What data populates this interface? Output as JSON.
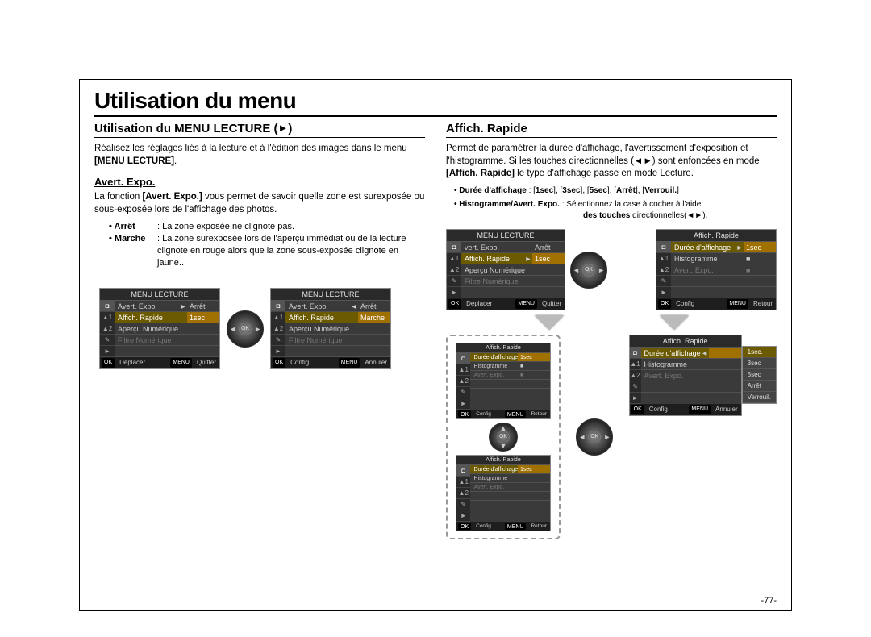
{
  "page_title": "Utilisation du menu",
  "page_number": "-77-",
  "left": {
    "heading": "Utilisation du MENU LECTURE (",
    "heading_icon": "►",
    "heading_close": ")",
    "intro_1": "Réalisez les réglages liés à la lecture et à l'édition des images dans le menu ",
    "intro_bold": "[MENU LECTURE]",
    "intro_2": ".",
    "sub_heading": "Avert. Expo.",
    "sub_intro_a": "La fonction ",
    "sub_intro_bold": "[Avert. Expo.]",
    "sub_intro_b": " vous permet de savoir quelle zone est surexposée ou sous-exposée lors de l'affichage des photos.",
    "def1_k": "• Arrêt",
    "def1_v": ": La zone exposée ne clignote pas.",
    "def2_k": "• Marche",
    "def2_v": ": La zone surexposée lors de l'aperçu immédiat ou de la lecture clignote en rouge alors que la zone sous-exposée clignote en jaune..",
    "lcd1": {
      "title": "MENU LECTURE",
      "rows": [
        {
          "label": "Avert. Expo.",
          "arrow": "►",
          "val": "Arrêt",
          "sel": false
        },
        {
          "label": "Affich. Rapide",
          "arrow": "",
          "val": "1sec",
          "sel": true
        },
        {
          "label": "Aperçu Numérique",
          "arrow": "",
          "val": "",
          "sel": false
        },
        {
          "label": "Filtre Numérique",
          "arrow": "",
          "val": "",
          "sel": false,
          "dim": true
        }
      ],
      "foot_l": "Déplacer",
      "foot_btn": "MENU",
      "foot_r": "Quitter"
    },
    "lcd2": {
      "title": "MENU LECTURE",
      "rows": [
        {
          "label": "Avert. Expo.",
          "arrow": "◄",
          "val": "Arrêt",
          "sel": false
        },
        {
          "label": "Affich. Rapide",
          "arrow": "",
          "val": "Marche",
          "sel": true
        },
        {
          "label": "Aperçu Numérique",
          "arrow": "",
          "val": "",
          "sel": false
        },
        {
          "label": "Filtre Numérique",
          "arrow": "",
          "val": "",
          "sel": false,
          "dim": true
        }
      ],
      "foot_l": "Config",
      "foot_btn": "MENU",
      "foot_r": "Annuler"
    }
  },
  "right": {
    "heading": "Afﬁch. Rapide",
    "intro": "Permet de paramétrer la durée d'affichage, l'avertissement d'exposition et l'histogramme. Si les touches directionnelles (◄►) sont enfoncées en mode ",
    "intro_bold": "[Afﬁch. Rapide]",
    "intro_2": " le type d'affichage passe en mode Lecture.",
    "b1_a": "• Durée d'afﬁchage",
    "b1_b": " : [",
    "b1_opts": [
      "1sec",
      "3sec",
      "5sec",
      "Arrêt",
      "Verrouil."
    ],
    "b2_a": "• Histogramme/Avert. Expo.",
    "b2_b": " : Sélectionnez la case à cocher à l'aide ",
    "b2_c": "des touches ",
    "b2_d": "directionnelles(◄►).",
    "lcdA": {
      "title": "MENU LECTURE",
      "rows": [
        {
          "label": "vert. Expo.",
          "arrow": "",
          "val": "Arrêt",
          "sel": false
        },
        {
          "label": "Affich. Rapide",
          "arrow": "►",
          "val": "1sec",
          "sel": true
        },
        {
          "label": "Aperçu Numérique",
          "arrow": "",
          "val": "",
          "sel": false
        },
        {
          "label": "Filtre Numérique",
          "arrow": "",
          "val": "",
          "sel": false,
          "dim": true
        }
      ],
      "foot_l": "Déplacer",
      "foot_btn": "MENU",
      "foot_r": "Quitter"
    },
    "lcdB": {
      "title": "Affich. Rapide",
      "rows": [
        {
          "label": "Durée d'affichage",
          "arrow": "►",
          "val": "1sec",
          "sel": true
        },
        {
          "label": "Histogramme",
          "arrow": "",
          "val": "■",
          "sel": false
        },
        {
          "label": "Avert. Expo.",
          "arrow": "",
          "val": "■",
          "sel": false,
          "dim": true
        }
      ],
      "foot_l": "Config",
      "foot_btn": "MENU",
      "foot_r": "Retour"
    },
    "lcdC": {
      "title": "Affich. Rapide",
      "rows": [
        {
          "label": "Durée d'affichage",
          "arrow": "",
          "val": "1sec",
          "sel": true
        },
        {
          "label": "Histogramme",
          "arrow": "",
          "val": "■",
          "sel": false
        },
        {
          "label": "Avert. Expo.",
          "arrow": "",
          "val": "■",
          "sel": false,
          "dim": true
        }
      ],
      "foot_l": "Config",
      "foot_btn": "MENU",
      "foot_r": "Retour"
    },
    "lcdD": {
      "title": "Affich. Rapide",
      "rows": [
        {
          "label": "Durée d'affichage",
          "arrow": "",
          "val": "1sec",
          "sel": true
        },
        {
          "label": "Histogramme",
          "arrow": "",
          "val": "",
          "sel": false
        },
        {
          "label": "Avert. Expo.",
          "arrow": "",
          "val": "",
          "sel": false,
          "dim": true
        }
      ],
      "foot_l": "Config",
      "foot_btn": "MENU",
      "foot_r": "Retour"
    },
    "lcdE": {
      "title": "Affich. Rapide",
      "rows": [
        {
          "label": "Durée d'affichage",
          "arrow": "◄",
          "val": "",
          "sel": true
        },
        {
          "label": "Histogramme",
          "arrow": "",
          "val": "",
          "sel": false
        },
        {
          "label": "Avert. Expo.",
          "arrow": "",
          "val": "",
          "sel": false,
          "dim": true
        }
      ],
      "foot_l": "Config",
      "foot_btn": "MENU",
      "foot_r": "Annuler",
      "opts": [
        "1sec.",
        "3sec",
        "5sec",
        "Arrêt",
        "Verrouil."
      ]
    },
    "tabs": [
      "◘",
      "▲1",
      "▲2",
      "✎",
      "►"
    ]
  },
  "colors": {
    "lcd_bg": "#3a3a3a",
    "lcd_sel": "#6b5a00",
    "page_border": "#000000"
  },
  "ok_label": "OK"
}
